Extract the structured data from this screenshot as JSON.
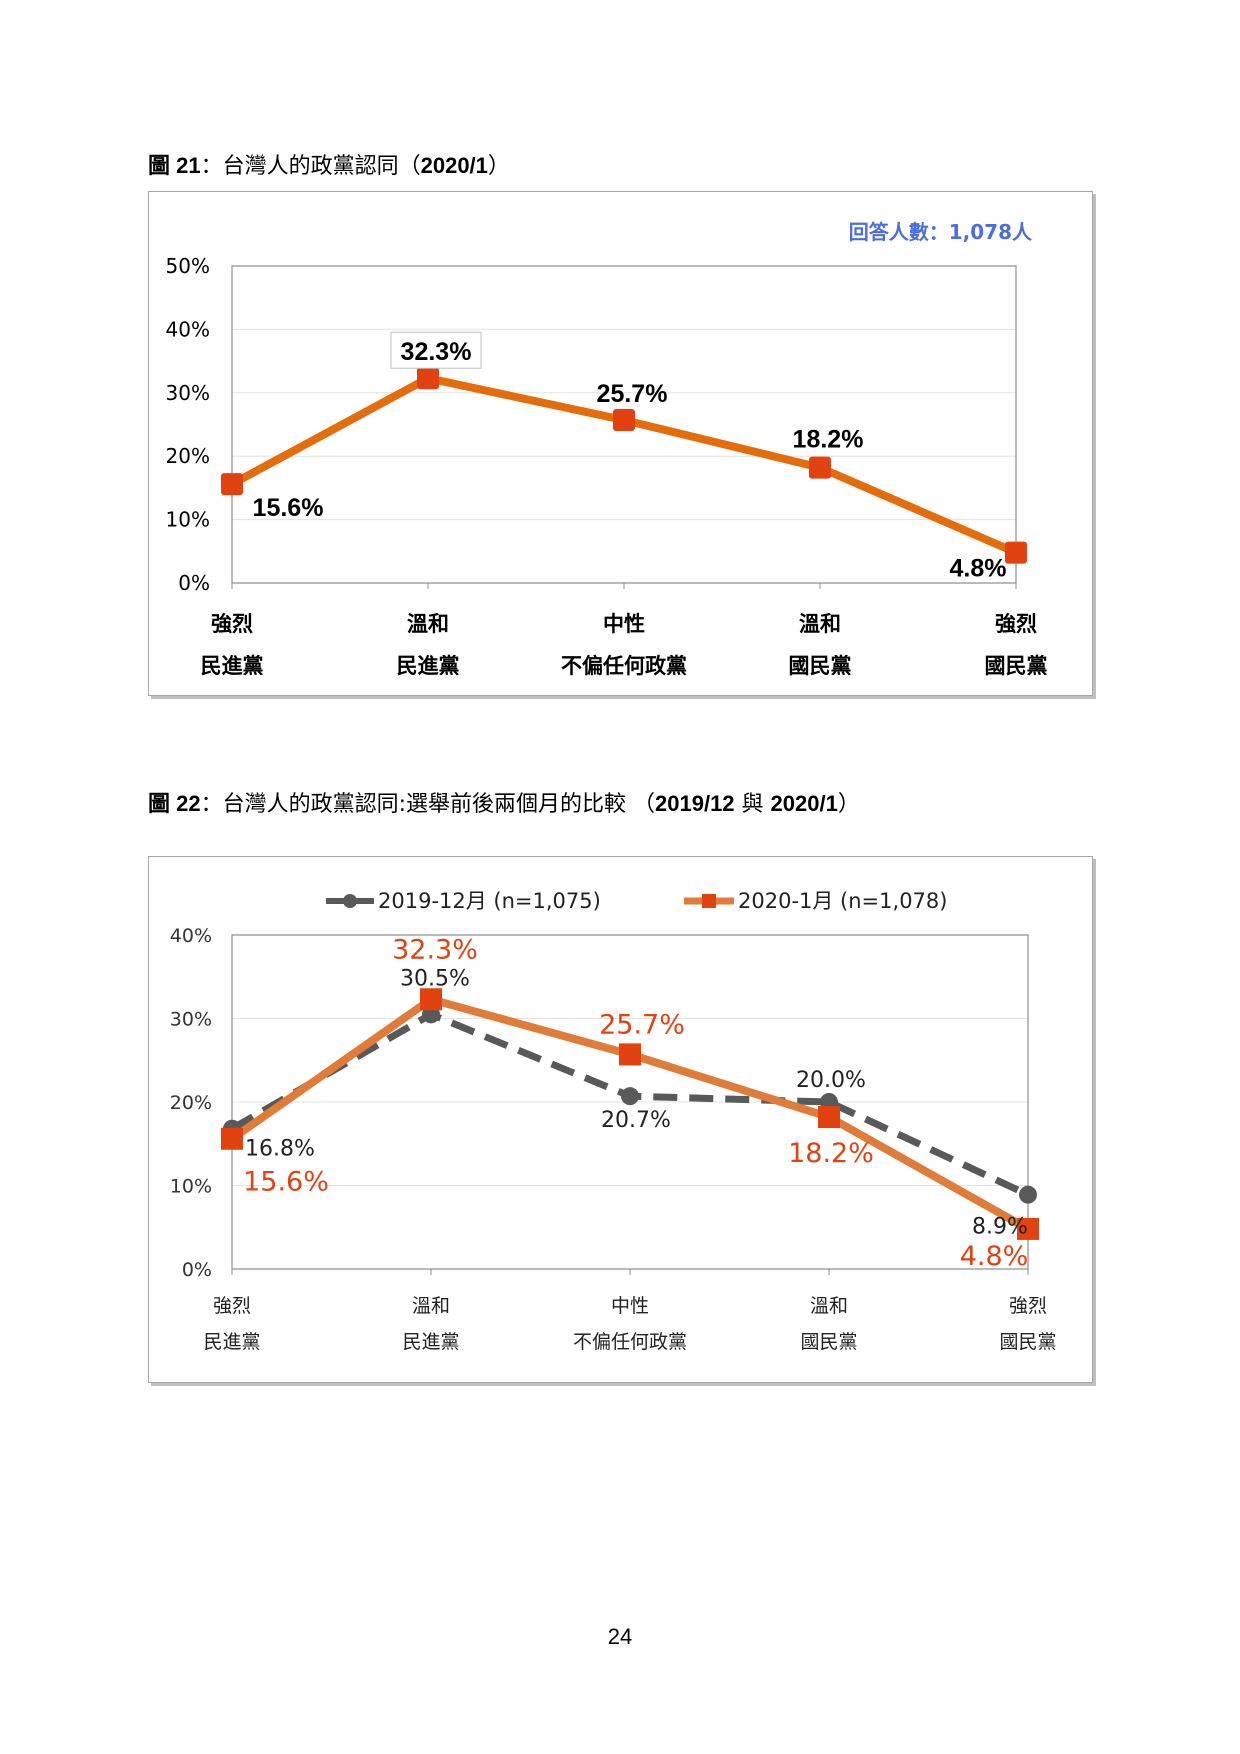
{
  "figure1": {
    "title_prefix": "圖 21",
    "title_text": "：台灣人的政黨認同（",
    "title_date": "2020/1",
    "title_suffix": "）",
    "sample_note": "回答人數：1,078人"
  },
  "figure2": {
    "title_prefix": "圖 22",
    "title_text": "：台灣人的政黨認同:選舉前後兩個月的比較 （",
    "title_date": "2019/12",
    "title_mid": " 與 ",
    "title_date2": "2020/1",
    "title_suffix": "）"
  },
  "page_number": "24",
  "chart_data": [
    {
      "type": "line",
      "categories": [
        [
          "強烈",
          "民進黨"
        ],
        [
          "溫和",
          "民進黨"
        ],
        [
          "中性",
          "不偏任何政黨"
        ],
        [
          "溫和",
          "國民黨"
        ],
        [
          "強烈",
          "國民黨"
        ]
      ],
      "series": [
        {
          "values": [
            15.6,
            32.3,
            25.7,
            18.2,
            4.8
          ],
          "labels": [
            "15.6%",
            "32.3%",
            "25.7%",
            "18.2%",
            "4.8%"
          ],
          "color": "#e46c0a",
          "marker": "#e2420f"
        }
      ],
      "yticks": [
        "0%",
        "10%",
        "20%",
        "30%",
        "40%",
        "50%"
      ],
      "ylim": [
        0,
        50
      ],
      "grid": true,
      "legend": "none"
    },
    {
      "type": "line",
      "categories": [
        [
          "強烈",
          "民進黨"
        ],
        [
          "溫和",
          "民進黨"
        ],
        [
          "中性",
          "不偏任何政黨"
        ],
        [
          "溫和",
          "國民黨"
        ],
        [
          "強烈",
          "國民黨"
        ]
      ],
      "series": [
        {
          "name": "2019-12月 (n=1,075)",
          "values": [
            16.8,
            30.5,
            20.7,
            20.0,
            8.9
          ],
          "labels": [
            "16.8%",
            "30.5%",
            "20.7%",
            "20.0%",
            "8.9%"
          ],
          "color": "#595959",
          "style": "dashed",
          "marker_shape": "circle"
        },
        {
          "name": "2020-1月 (n=1,078)",
          "values": [
            15.6,
            32.3,
            25.7,
            18.2,
            4.8
          ],
          "labels": [
            "15.6%",
            "32.3%",
            "25.7%",
            "18.2%",
            "4.8%"
          ],
          "color": "#e07b39",
          "label_color": "#e2420f",
          "style": "solid",
          "marker_shape": "square"
        }
      ],
      "yticks": [
        "0%",
        "10%",
        "20%",
        "30%",
        "40%"
      ],
      "ylim": [
        0,
        40
      ],
      "grid": true,
      "legend": "top"
    }
  ]
}
